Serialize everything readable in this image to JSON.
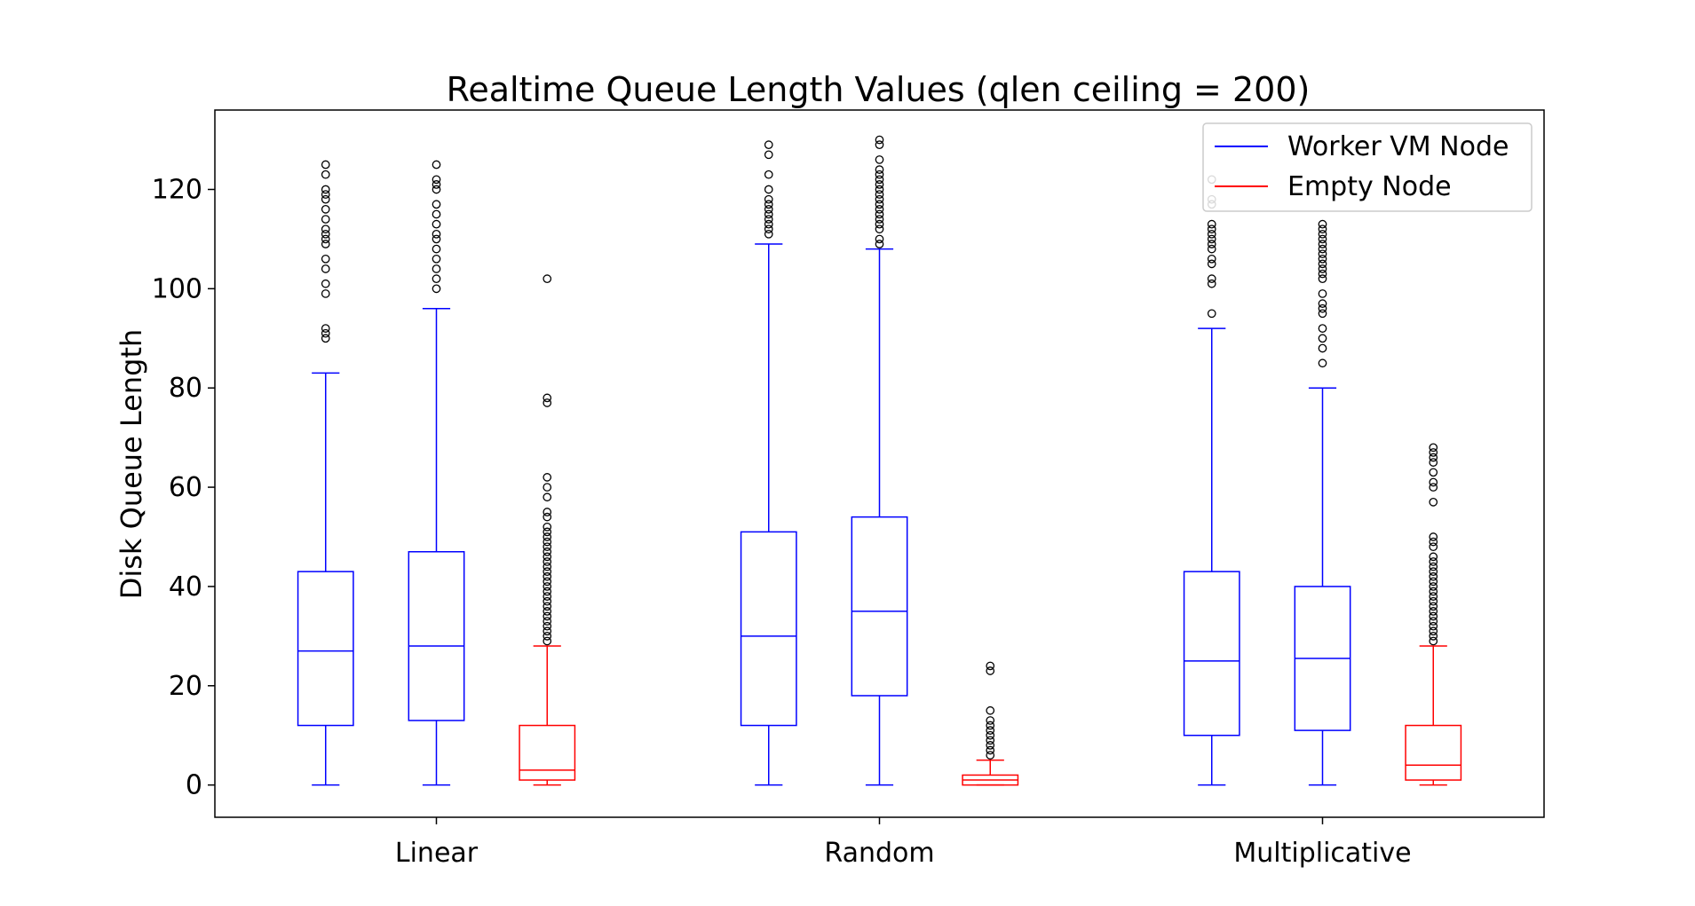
{
  "chart_data": {
    "type": "boxplot",
    "title": "Realtime Queue Length Values (qlen ceiling = 200)",
    "xlabel": "",
    "ylabel": "Disk Queue Length",
    "ylim": [
      -6.5,
      136
    ],
    "yticks": [
      0,
      20,
      40,
      60,
      80,
      100,
      120
    ],
    "categories": [
      "Linear",
      "Random",
      "Multiplicative"
    ],
    "legend": {
      "placement": "top-right",
      "entries": [
        {
          "label": "Worker VM Node",
          "color": "#0000ff"
        },
        {
          "label": "Empty Node",
          "color": "#ff0000"
        }
      ]
    },
    "boxes": [
      {
        "category": "Linear",
        "node": "worker",
        "color": "#0000ff",
        "whisker_low": 0,
        "q1": 12,
        "median": 27,
        "q3": 43,
        "whisker_high": 83,
        "outliers": [
          90,
          91,
          92,
          99,
          101,
          104,
          106,
          109,
          110,
          111,
          112,
          114,
          116,
          118,
          119,
          120,
          123,
          125
        ]
      },
      {
        "category": "Linear",
        "node": "worker",
        "color": "#0000ff",
        "whisker_low": 0,
        "q1": 13,
        "median": 28,
        "q3": 47,
        "whisker_high": 96,
        "outliers": [
          100,
          102,
          104,
          106,
          108,
          110,
          111,
          113,
          115,
          117,
          120,
          121,
          122,
          125
        ]
      },
      {
        "category": "Linear",
        "node": "empty",
        "color": "#ff0000",
        "whisker_low": 0,
        "q1": 1,
        "median": 3,
        "q3": 12,
        "whisker_high": 28,
        "outliers": [
          29,
          30,
          31,
          32,
          33,
          34,
          35,
          36,
          37,
          38,
          39,
          40,
          41,
          42,
          43,
          44,
          45,
          46,
          47,
          48,
          49,
          50,
          51,
          52,
          54,
          55,
          58,
          60,
          62,
          77,
          78,
          102
        ]
      },
      {
        "category": "Random",
        "node": "worker",
        "color": "#0000ff",
        "whisker_low": 0,
        "q1": 12,
        "median": 30,
        "q3": 51,
        "whisker_high": 109,
        "outliers": [
          111,
          112,
          113,
          114,
          115,
          116,
          117,
          118,
          120,
          123,
          127,
          129
        ]
      },
      {
        "category": "Random",
        "node": "worker",
        "color": "#0000ff",
        "whisker_low": 0,
        "q1": 18,
        "median": 35,
        "q3": 54,
        "whisker_high": 108,
        "outliers": [
          109,
          110,
          112,
          113,
          114,
          115,
          116,
          117,
          118,
          119,
          120,
          121,
          122,
          123,
          124,
          126,
          129,
          130
        ]
      },
      {
        "category": "Random",
        "node": "empty",
        "color": "#ff0000",
        "whisker_low": 0,
        "q1": 0,
        "median": 1,
        "q3": 2,
        "whisker_high": 5,
        "outliers": [
          6,
          7,
          8,
          9,
          10,
          11,
          12,
          13,
          15,
          23,
          24
        ]
      },
      {
        "category": "Multiplicative",
        "node": "worker",
        "color": "#0000ff",
        "whisker_low": 0,
        "q1": 10,
        "median": 25,
        "q3": 43,
        "whisker_high": 92,
        "outliers": [
          95,
          101,
          102,
          105,
          106,
          108,
          109,
          110,
          111,
          112,
          113,
          117,
          118,
          122
        ]
      },
      {
        "category": "Multiplicative",
        "node": "worker",
        "color": "#0000ff",
        "whisker_low": 0,
        "q1": 11,
        "median": 25.5,
        "q3": 40,
        "whisker_high": 80,
        "outliers": [
          85,
          88,
          90,
          92,
          95,
          96,
          97,
          99,
          102,
          103,
          104,
          105,
          106,
          107,
          108,
          109,
          110,
          111,
          112,
          113
        ]
      },
      {
        "category": "Multiplicative",
        "node": "empty",
        "color": "#ff0000",
        "whisker_low": 0,
        "q1": 1,
        "median": 4,
        "q3": 12,
        "whisker_high": 28,
        "outliers": [
          29,
          30,
          31,
          32,
          33,
          34,
          35,
          36,
          37,
          38,
          39,
          40,
          41,
          42,
          43,
          44,
          45,
          46,
          48,
          49,
          50,
          57,
          60,
          61,
          63,
          65,
          66,
          67,
          68
        ]
      }
    ]
  }
}
